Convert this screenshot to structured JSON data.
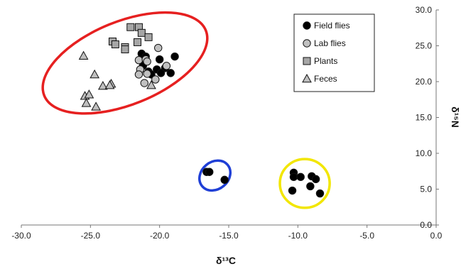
{
  "chart_data": {
    "type": "scatter",
    "xlabel": "δ¹³C",
    "ylabel": "δ¹⁵N",
    "xlim": [
      -30,
      0
    ],
    "ylim": [
      0,
      30
    ],
    "x_ticks": [
      "-30.0",
      "-25.0",
      "-20.0",
      "-15.0",
      "-10.0",
      "-5.0",
      "0.0"
    ],
    "y_ticks": [
      "0.0",
      "5.0",
      "10.0",
      "15.0",
      "20.0",
      "25.0",
      "30.0"
    ],
    "grid": false,
    "legend_position": "top-right",
    "series": [
      {
        "name": "Field flies",
        "marker": "circle",
        "color": "#000000",
        "points": [
          [
            -21.3,
            23.9
          ],
          [
            -21.0,
            23.5
          ],
          [
            -20.0,
            23.1
          ],
          [
            -18.9,
            23.5
          ],
          [
            -21.2,
            22.2
          ],
          [
            -20.8,
            21.4
          ],
          [
            -20.2,
            21.7
          ],
          [
            -19.6,
            21.9
          ],
          [
            -20.6,
            21.0
          ],
          [
            -19.9,
            21.2
          ],
          [
            -19.2,
            21.2
          ],
          [
            -16.6,
            7.4
          ],
          [
            -16.4,
            7.4
          ],
          [
            -15.3,
            6.3
          ],
          [
            -10.3,
            7.3
          ],
          [
            -10.3,
            6.7
          ],
          [
            -9.8,
            6.7
          ],
          [
            -9.0,
            6.8
          ],
          [
            -8.7,
            6.4
          ],
          [
            -10.4,
            4.8
          ],
          [
            -9.1,
            5.4
          ],
          [
            -8.4,
            4.4
          ]
        ]
      },
      {
        "name": "Lab flies",
        "marker": "circle",
        "color": "#c0c0c0",
        "points": [
          [
            -21.5,
            23.0
          ],
          [
            -21.0,
            23.1
          ],
          [
            -20.1,
            24.7
          ],
          [
            -20.9,
            22.8
          ],
          [
            -21.4,
            21.7
          ],
          [
            -21.5,
            21.0
          ],
          [
            -20.9,
            21.1
          ],
          [
            -21.1,
            19.8
          ],
          [
            -20.3,
            20.3
          ],
          [
            -19.5,
            22.2
          ]
        ]
      },
      {
        "name": "Plants",
        "marker": "square",
        "color": "#a6a6a6",
        "points": [
          [
            -22.1,
            27.6
          ],
          [
            -21.5,
            27.6
          ],
          [
            -21.3,
            26.8
          ],
          [
            -20.8,
            26.2
          ],
          [
            -23.4,
            25.6
          ],
          [
            -23.2,
            25.2
          ],
          [
            -21.6,
            25.5
          ],
          [
            -22.5,
            24.8
          ],
          [
            -22.5,
            24.5
          ]
        ]
      },
      {
        "name": "Feces",
        "marker": "triangle",
        "color": "#bfbfbf",
        "points": [
          [
            -25.5,
            23.6
          ],
          [
            -24.7,
            21.0
          ],
          [
            -24.1,
            19.4
          ],
          [
            -23.5,
            19.7
          ],
          [
            -23.6,
            19.5
          ],
          [
            -25.4,
            18.0
          ],
          [
            -25.1,
            18.2
          ],
          [
            -25.3,
            17.0
          ],
          [
            -24.6,
            16.5
          ],
          [
            -20.6,
            19.5
          ]
        ]
      }
    ],
    "ellipses": [
      {
        "color": "#e62020",
        "cx": -22.5,
        "cy": 22.6,
        "rx": 6.3,
        "ry": 5.8,
        "rotation": -22
      },
      {
        "color": "#1f3fd6",
        "cx": -16.0,
        "cy": 6.9,
        "rx": 1.2,
        "ry": 1.9,
        "rotation": -40
      },
      {
        "color": "#f2e600",
        "cx": -9.5,
        "cy": 5.8,
        "rx": 1.8,
        "ry": 3.4,
        "rotation": 0
      }
    ]
  }
}
